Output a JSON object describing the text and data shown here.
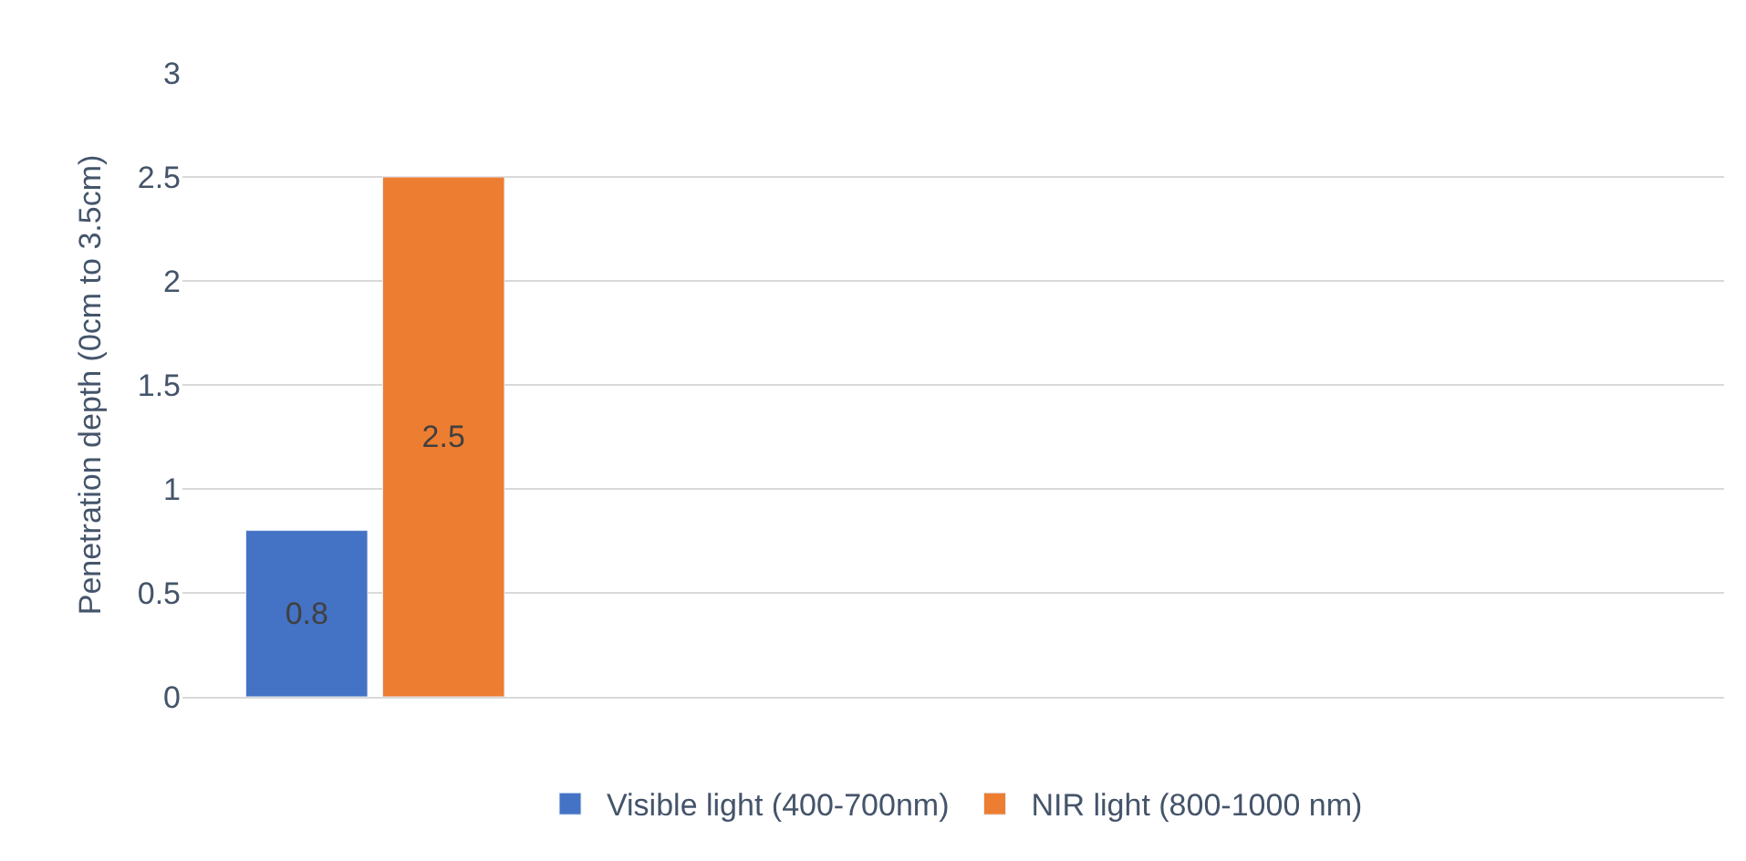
{
  "chart_data": {
    "type": "bar",
    "ylabel": "Penetration depth (0cm to 3.5cm)",
    "categories": [
      null,
      null,
      null,
      null
    ],
    "series": [
      {
        "name": "Visible light (400-700nm)",
        "color": "#4472c4",
        "values": [
          0.8,
          null,
          null,
          null
        ]
      },
      {
        "name": "NIR light (800-1000 nm)",
        "color": "#ed7d31",
        "values": [
          2.5,
          null,
          null,
          null
        ]
      }
    ],
    "ylim": [
      0,
      3
    ],
    "yticks": [
      0,
      0.5,
      1,
      1.5,
      2,
      2.5,
      3
    ],
    "grid": "y",
    "legend": "bottom",
    "data_labels": true
  }
}
